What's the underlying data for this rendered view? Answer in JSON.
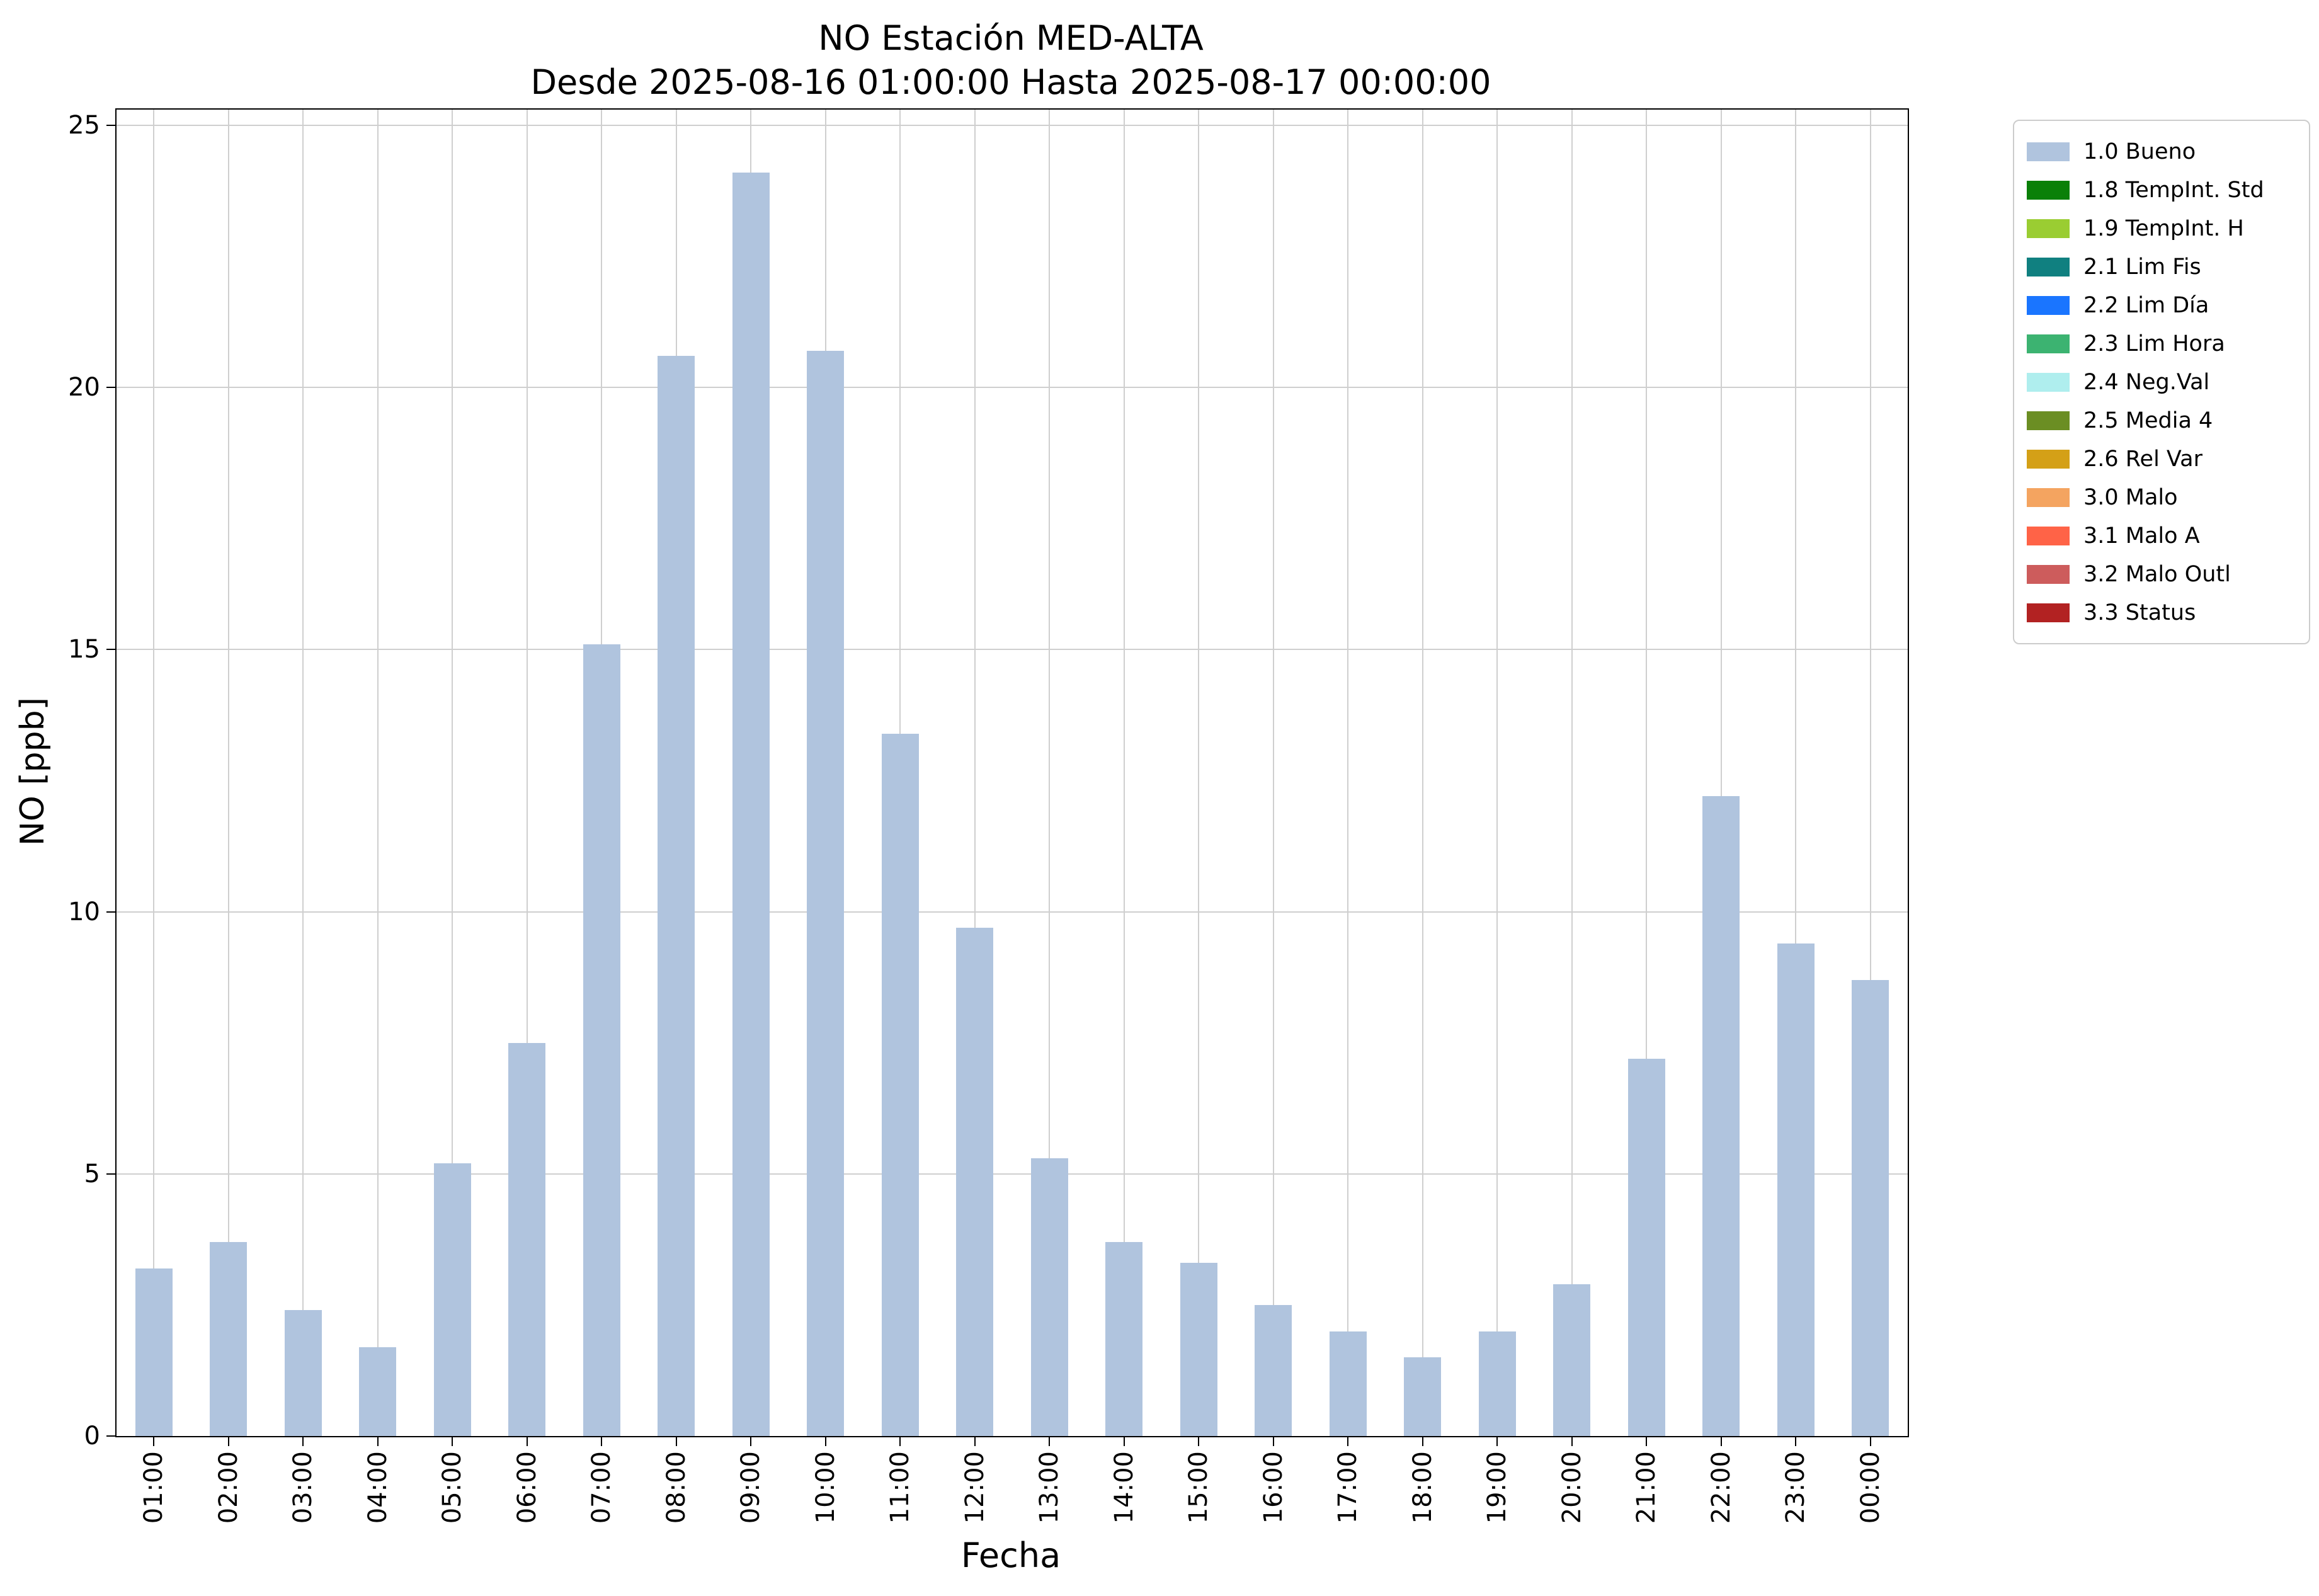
{
  "chart_data": {
    "type": "bar",
    "title": "NO Estación MED-ALTA",
    "subtitle": "Desde 2025-08-16 01:00:00 Hasta 2025-08-17 00:00:00",
    "xlabel": "Fecha",
    "ylabel": "NO [ppb]",
    "categories": [
      "01:00",
      "02:00",
      "03:00",
      "04:00",
      "05:00",
      "06:00",
      "07:00",
      "08:00",
      "09:00",
      "10:00",
      "11:00",
      "12:00",
      "13:00",
      "14:00",
      "15:00",
      "16:00",
      "17:00",
      "18:00",
      "19:00",
      "20:00",
      "21:00",
      "22:00",
      "23:00",
      "00:00"
    ],
    "series": [
      {
        "name": "1.0 Bueno",
        "color": "#b0c4de",
        "values": [
          3.2,
          3.7,
          2.4,
          1.7,
          5.2,
          7.5,
          15.1,
          20.6,
          24.1,
          20.7,
          13.4,
          9.7,
          5.3,
          3.7,
          3.3,
          2.5,
          2.0,
          1.5,
          2.0,
          2.9,
          7.2,
          12.2,
          9.4,
          8.7
        ]
      }
    ],
    "ylim": [
      0,
      25.3
    ],
    "yticks": [
      0,
      5,
      10,
      15,
      20,
      25
    ],
    "grid": true,
    "grid_color": "#cfcfcf",
    "bar_width_fraction": 0.5,
    "legend": {
      "position": "outside-upper-right",
      "entries": [
        {
          "label": "1.0 Bueno",
          "color": "#b0c4de"
        },
        {
          "label": "1.8 TempInt. Std",
          "color": "#0a8008"
        },
        {
          "label": "1.9 TempInt. H",
          "color": "#9acd32"
        },
        {
          "label": "2.1 Lim Fis",
          "color": "#108080"
        },
        {
          "label": "2.2 Lim Día",
          "color": "#1a75ff"
        },
        {
          "label": "2.3 Lim Hora",
          "color": "#3cb371"
        },
        {
          "label": "2.4 Neg.Val",
          "color": "#afeeee"
        },
        {
          "label": "2.5 Media 4",
          "color": "#6b8e23"
        },
        {
          "label": "2.6 Rel Var",
          "color": "#d4a017"
        },
        {
          "label": "3.0 Malo",
          "color": "#f4a460"
        },
        {
          "label": "3.1 Malo A",
          "color": "#ff6347"
        },
        {
          "label": "3.2 Malo Outl",
          "color": "#cd5c5c"
        },
        {
          "label": "3.3 Status",
          "color": "#b22222"
        }
      ]
    }
  }
}
